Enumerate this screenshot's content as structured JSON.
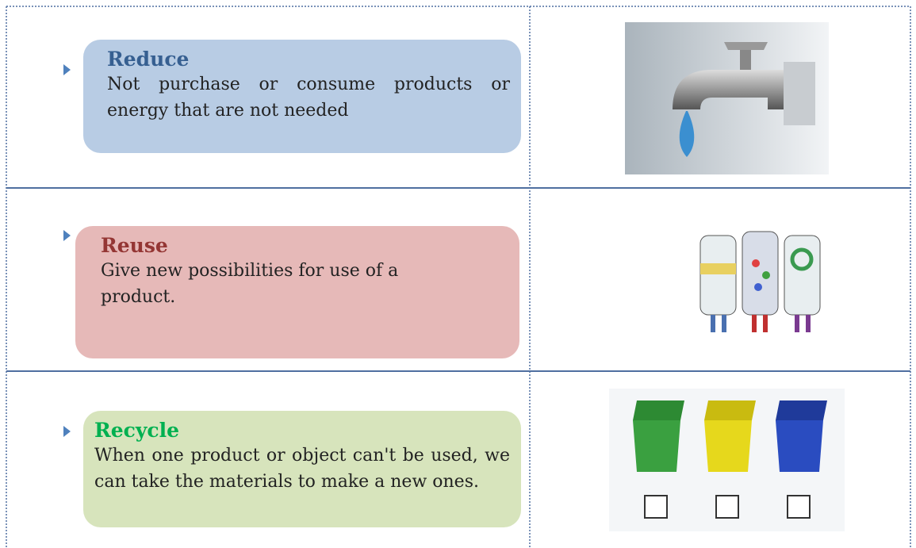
{
  "table": {
    "rows": [
      {
        "title": "Reduce",
        "text": "Not purchase or consume products or energy that are not needed"
      },
      {
        "title": "Reuse",
        "text": "Give new possibilities for use of a product."
      },
      {
        "title": "Recycle",
        "text": "When one product or object can't be used, we can take the materials to make a new ones."
      }
    ]
  }
}
